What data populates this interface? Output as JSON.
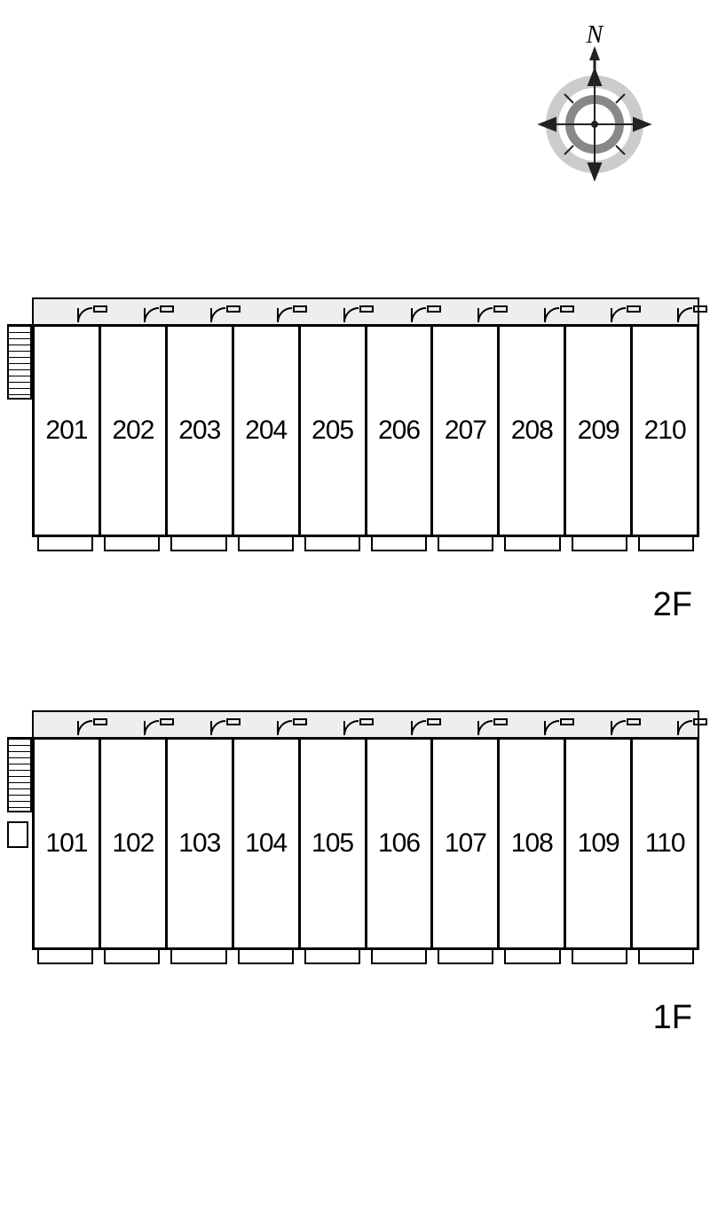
{
  "compass": {
    "north_label": "N",
    "outer_ring_color": "#cccccc",
    "inner_ring_color": "#888888",
    "arrow_color": "#222222",
    "label_fontsize": 28,
    "label_style": "italic"
  },
  "building": {
    "line_color": "#000000",
    "background_color": "#ffffff",
    "corridor_fill": "#eeeeee",
    "unit_label_fontsize": 30,
    "floor_label_fontsize": 38,
    "floors": [
      {
        "id": "2f",
        "label": "2F",
        "units": [
          "201",
          "202",
          "203",
          "204",
          "205",
          "206",
          "207",
          "208",
          "209",
          "210"
        ]
      },
      {
        "id": "1f",
        "label": "1F",
        "units": [
          "101",
          "102",
          "103",
          "104",
          "105",
          "106",
          "107",
          "108",
          "109",
          "110"
        ]
      }
    ]
  }
}
